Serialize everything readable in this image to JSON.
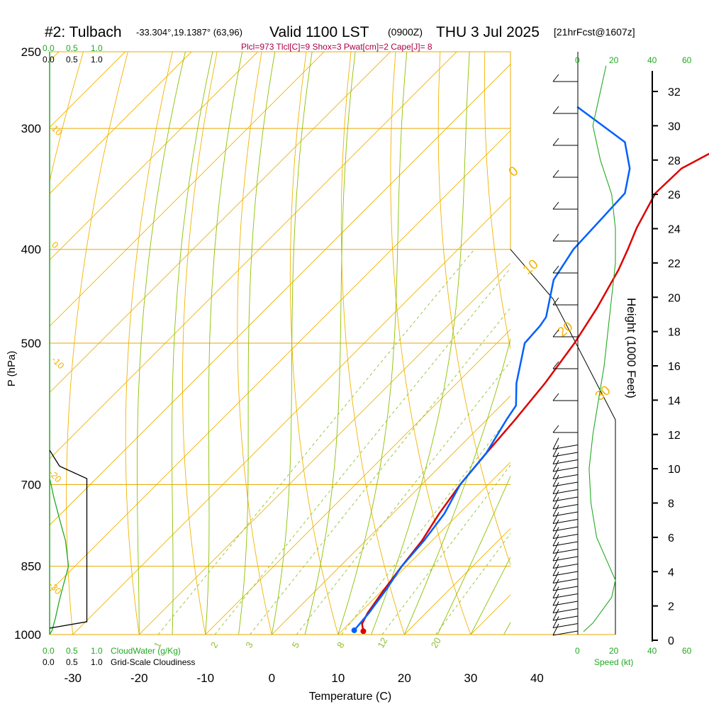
{
  "header": {
    "station": "#2: Tulbach",
    "coords": "-33.304°,19.1387° (63,96)",
    "valid": "Valid 1100 LST",
    "utc": "(0900Z)",
    "date": "THU 3 Jul 2025",
    "fcst": "[21hrFcst@1607z]"
  },
  "indices": "Plcl=973 Tlcl[C]=9 Shox=3 Pwat[cm]=2 Cape[J]= 8",
  "colors": {
    "isobar": "#e8a800",
    "dry_adiabat": "#f2b300",
    "moist_adiabat": "#8cc000",
    "mixing_ratio": "#90c030",
    "temperature": "#dd0000",
    "dewpoint": "#0060ff",
    "cloudwater": "#22aa22",
    "cloudiness": "#000000",
    "text": "#000000",
    "indices": "#aa0044"
  },
  "chart_data": [
    {
      "type": "line",
      "title": "",
      "xlabel": "Temperature (C)",
      "ylabel": "P (hPa)",
      "x_ticks": [
        "-30",
        "-20",
        "-10",
        "0",
        "10",
        "20",
        "30",
        "40"
      ],
      "y_ticks": [
        "250",
        "300",
        "400",
        "500",
        "700",
        "850",
        "1000"
      ],
      "xlim": [
        -33.5,
        36
      ],
      "pressure_levels": [
        250,
        300,
        400,
        500,
        700,
        850,
        1000
      ],
      "series": [
        {
          "role": "temperature",
          "points": [
            [
              13.3,
              992
            ],
            [
              12.0,
              975
            ],
            [
              11.2,
              950
            ],
            [
              10.2,
              900
            ],
            [
              9.3,
              850
            ],
            [
              8.5,
              800
            ],
            [
              7.0,
              750
            ],
            [
              5.8,
              700
            ],
            [
              5.0,
              650
            ],
            [
              4.3,
              600
            ],
            [
              3.3,
              550
            ],
            [
              1.7,
              500
            ],
            [
              -0.2,
              460
            ],
            [
              -2.7,
              420
            ],
            [
              -4.4,
              400
            ],
            [
              -6.3,
              380
            ],
            [
              -8.7,
              350
            ],
            [
              -8.5,
              330
            ],
            [
              -5.0,
              310
            ],
            [
              -3.4,
              300
            ],
            [
              -2.0,
              285
            ],
            [
              -0.1,
              265
            ]
          ]
        },
        {
          "role": "dewpoint",
          "points": [
            [
              11.8,
              990
            ],
            [
              11.4,
              950
            ],
            [
              10.5,
              900
            ],
            [
              9.3,
              850
            ],
            [
              8.8,
              800
            ],
            [
              7.8,
              750
            ],
            [
              5.8,
              700
            ],
            [
              5.0,
              650
            ],
            [
              3.0,
              600
            ],
            [
              2.3,
              580
            ],
            [
              -1.0,
              550
            ],
            [
              -5.8,
              500
            ],
            [
              -6.1,
              480
            ],
            [
              -6.5,
              470
            ],
            [
              -11.0,
              430
            ],
            [
              -12.6,
              400
            ],
            [
              -13.0,
              370
            ],
            [
              -13.3,
              350
            ],
            [
              -16.3,
              330
            ],
            [
              -21.0,
              310
            ],
            [
              -33.5,
              285
            ]
          ]
        }
      ],
      "isotherm_labels": [
        "-10",
        "0",
        "10",
        "20",
        "30",
        "0",
        "-10",
        "-20",
        "-30"
      ],
      "mixing_ratio_labels": [
        "1",
        "2",
        "3",
        "5",
        "8",
        "12",
        "20"
      ],
      "dry_adiabat_labels": [
        "10",
        "0",
        "-10",
        "20",
        "30"
      ]
    },
    {
      "type": "line",
      "title": "",
      "series": [
        {
          "name": "CloudWater (g/Kg)",
          "x_ticks": [
            "0.0",
            "0.5",
            "1.0"
          ],
          "points": [
            [
              0.0,
              1000
            ],
            [
              0.05,
              990
            ],
            [
              0.12,
              960
            ],
            [
              0.2,
              920
            ],
            [
              0.3,
              880
            ],
            [
              0.38,
              850
            ],
            [
              0.32,
              800
            ],
            [
              0.2,
              760
            ],
            [
              0.08,
              720
            ],
            [
              0.03,
              700
            ],
            [
              0.0,
              690
            ]
          ]
        },
        {
          "name": "Grid-Scale Cloudiness",
          "x_ticks": [
            "0.0",
            "0.5",
            "1.0"
          ],
          "points": [
            [
              0.0,
              985
            ],
            [
              0.75,
              970
            ],
            [
              0.75,
              690
            ],
            [
              0.2,
              670
            ],
            [
              0.0,
              645
            ]
          ]
        }
      ]
    },
    {
      "type": "line",
      "title": "",
      "xlabel": "Speed (kt)",
      "ylabel": "Height (1000 Feet)",
      "x_ticks": [
        "0",
        "20",
        "40",
        "60"
      ],
      "x_ticks_top": [
        "0",
        "20",
        "40",
        "60"
      ],
      "height_ticks": [
        "0",
        "2",
        "4",
        "6",
        "8",
        "10",
        "12",
        "14",
        "16",
        "18",
        "20",
        "22",
        "24",
        "26",
        "28",
        "30",
        "32"
      ],
      "series": [
        {
          "name": "Speed",
          "points": [
            [
              3,
              0.5
            ],
            [
              8,
              1
            ],
            [
              18,
              2.5
            ],
            [
              20,
              3.5
            ],
            [
              16,
              4.5
            ],
            [
              10,
              6
            ],
            [
              7,
              8
            ],
            [
              6,
              10
            ],
            [
              8,
              12
            ],
            [
              11,
              14
            ],
            [
              14,
              16
            ],
            [
              16,
              18
            ],
            [
              18,
              20
            ],
            [
              20,
              22
            ],
            [
              20,
              24
            ],
            [
              18,
              26
            ],
            [
              12,
              28
            ],
            [
              8,
              30
            ],
            [
              12,
              32
            ],
            [
              15,
              33.5
            ]
          ]
        }
      ],
      "wind_barbs_count": 38
    }
  ]
}
